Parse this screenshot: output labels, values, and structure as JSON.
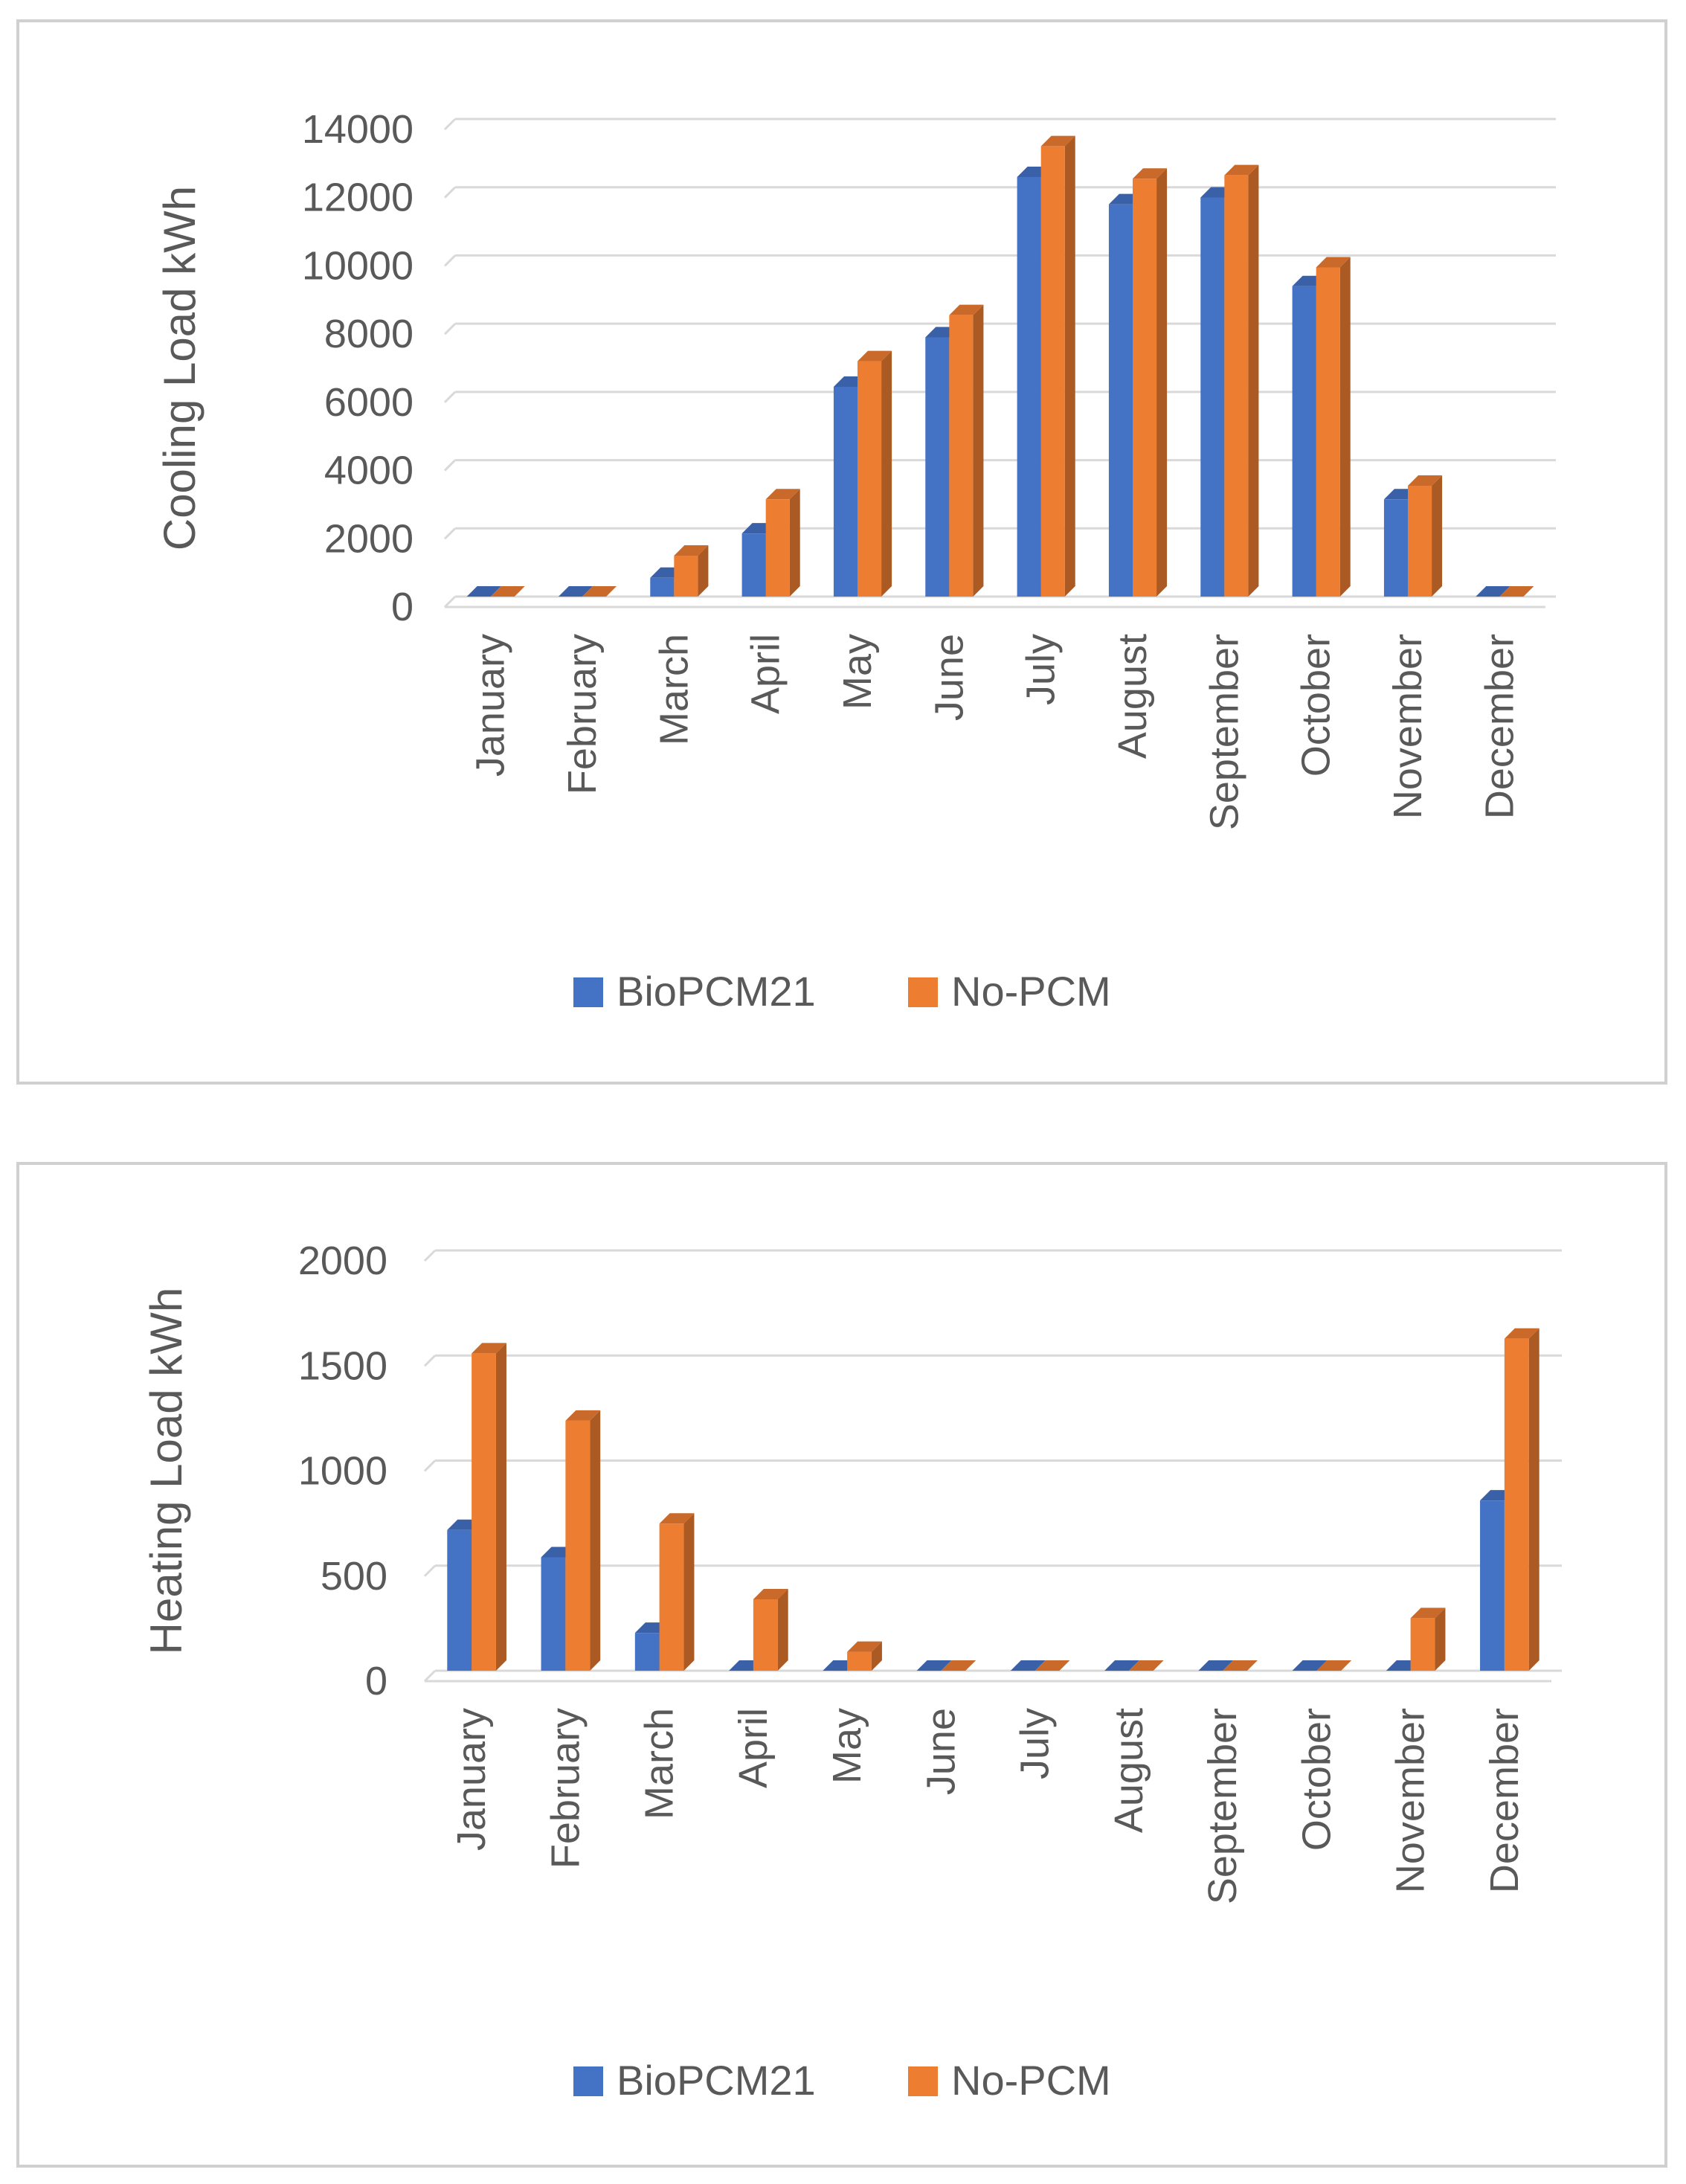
{
  "chart_data": [
    {
      "type": "bar",
      "ylabel": "Cooling Load kWh",
      "xlabel": "",
      "title": "",
      "categories": [
        "January",
        "February",
        "March",
        "April",
        "May",
        "June",
        "July",
        "August",
        "September",
        "October",
        "November",
        "December"
      ],
      "yticks": [
        "0",
        "2000",
        "4000",
        "6000",
        "8000",
        "10000",
        "12000",
        "14000"
      ],
      "ylim": [
        0,
        14000
      ],
      "series": [
        {
          "name": "BioPCM21",
          "color": "#4472c4",
          "values": [
            0,
            0,
            550,
            1850,
            6150,
            7600,
            12300,
            11500,
            11700,
            9100,
            2850,
            0
          ]
        },
        {
          "name": "No-PCM",
          "color": "#ed7d31",
          "values": [
            0,
            0,
            1200,
            2850,
            6900,
            8250,
            13200,
            12250,
            12350,
            9650,
            3250,
            0
          ]
        }
      ],
      "legend": "bottom"
    },
    {
      "type": "bar",
      "ylabel": "Heating Load kWh",
      "xlabel": "",
      "title": "",
      "categories": [
        "January",
        "February",
        "March",
        "April",
        "May",
        "June",
        "July",
        "August",
        "September",
        "October",
        "November",
        "December"
      ],
      "yticks": [
        "0",
        "500",
        "1000",
        "1500",
        "2000"
      ],
      "ylim": [
        0,
        2000
      ],
      "series": [
        {
          "name": "BioPCM21",
          "color": "#4472c4",
          "values": [
            670,
            540,
            180,
            0,
            0,
            0,
            0,
            0,
            0,
            0,
            0,
            810
          ]
        },
        {
          "name": "No-PCM",
          "color": "#ed7d31",
          "values": [
            1510,
            1190,
            700,
            340,
            90,
            0,
            0,
            0,
            0,
            0,
            250,
            1580
          ]
        }
      ],
      "legend": "bottom"
    }
  ]
}
